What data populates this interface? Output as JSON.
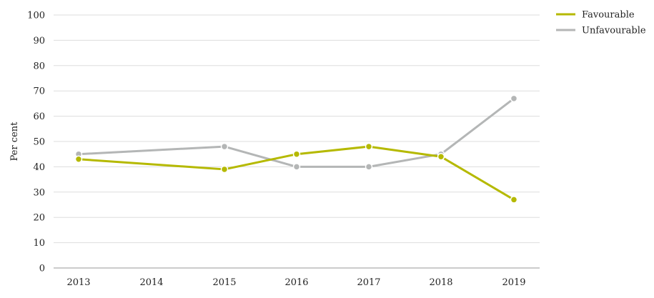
{
  "chart_data": {
    "type": "line",
    "ylabel": "Per cent",
    "xlabel": "",
    "ylim": [
      0,
      100
    ],
    "yticks": [
      0,
      10,
      20,
      30,
      40,
      50,
      60,
      70,
      80,
      90,
      100
    ],
    "categories": [
      "2013",
      "2014",
      "2015",
      "2016",
      "2017",
      "2018",
      "2019"
    ],
    "grid": true,
    "legend_position": "top-right",
    "series": [
      {
        "name": "Favourable",
        "color": "#b5b900",
        "points": [
          {
            "x": "2013",
            "y": 43
          },
          {
            "x": "2015",
            "y": 39
          },
          {
            "x": "2016",
            "y": 45
          },
          {
            "x": "2017",
            "y": 48
          },
          {
            "x": "2018",
            "y": 44
          },
          {
            "x": "2019",
            "y": 27
          }
        ]
      },
      {
        "name": "Unfavourable",
        "color": "#b4b6b6",
        "points": [
          {
            "x": "2013",
            "y": 45
          },
          {
            "x": "2015",
            "y": 48
          },
          {
            "x": "2016",
            "y": 40
          },
          {
            "x": "2017",
            "y": 40
          },
          {
            "x": "2018",
            "y": 45
          },
          {
            "x": "2019",
            "y": 67
          }
        ]
      }
    ]
  }
}
